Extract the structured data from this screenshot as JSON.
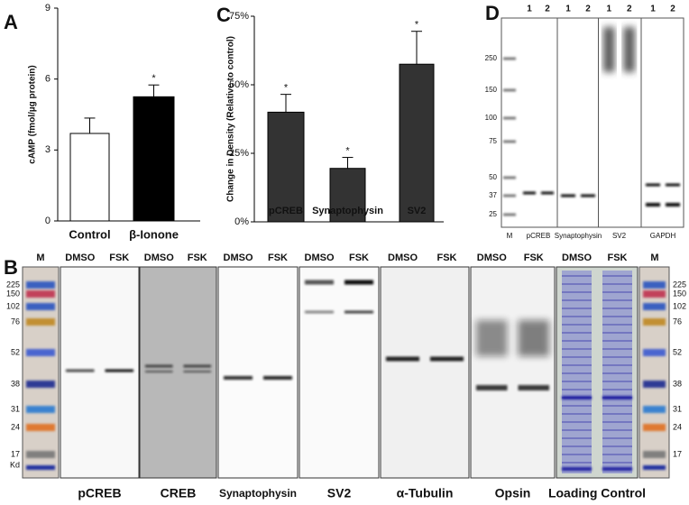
{
  "chart_data": [
    {
      "type": "bar",
      "panel": "A",
      "ylabel": "cAMP (fmol/µg protein)",
      "categories": [
        "Control",
        "β-Ionone"
      ],
      "values": [
        3.7,
        5.25
      ],
      "errors": [
        0.65,
        0.5
      ],
      "colors": [
        "#ffffff",
        "#000000"
      ],
      "annotations": [
        null,
        "*"
      ],
      "ylim": [
        0,
        9
      ],
      "yticks": [
        0,
        3,
        6,
        9
      ]
    },
    {
      "type": "bar",
      "panel": "C",
      "ylabel": "Change in Density (Relative to control)",
      "categories": [
        "pCREB",
        "Synaptophysin",
        "SV2"
      ],
      "values": [
        40,
        19.5,
        57.5
      ],
      "errors": [
        6.5,
        4,
        12
      ],
      "colors": [
        "#333333",
        "#333333",
        "#333333"
      ],
      "annotations": [
        "*",
        "*",
        "*"
      ],
      "ylim": [
        0,
        75
      ],
      "yticks": [
        {
          "value": 0,
          "label": "0%"
        },
        {
          "value": 25,
          "label": "25%"
        },
        {
          "value": 50,
          "label": "50%"
        },
        {
          "value": 75,
          "label": "75%"
        }
      ]
    }
  ],
  "blot_d": {
    "panel": "D",
    "marker_label": "M",
    "lanes": [
      "1",
      "2"
    ],
    "ladder": [
      "250",
      "150",
      "100",
      "75",
      "50",
      "37",
      "25"
    ],
    "strips": [
      "pCREB",
      "Synaptophysin",
      "SV2",
      "GAPDH"
    ]
  },
  "blot_b": {
    "panel": "B",
    "marker_label": "M",
    "conditions": [
      "DMSO",
      "FSK"
    ],
    "ladder": [
      "225",
      "150",
      "102",
      "76",
      "52",
      "38",
      "31",
      "24",
      "17"
    ],
    "unit": "Kd",
    "strips": [
      {
        "label": "pCREB",
        "color": "#d42a2a"
      },
      {
        "label": "CREB",
        "color": "#d42a2a"
      },
      {
        "label": "Synaptophysin",
        "color": "#d42a2a"
      },
      {
        "label": "SV2",
        "color": "#d42a2a"
      },
      {
        "label": "α-Tubulin",
        "color": "#111111"
      },
      {
        "label": "Opsin",
        "color": "#111111"
      },
      {
        "label": "Loading Control",
        "color": "#111111"
      }
    ]
  }
}
